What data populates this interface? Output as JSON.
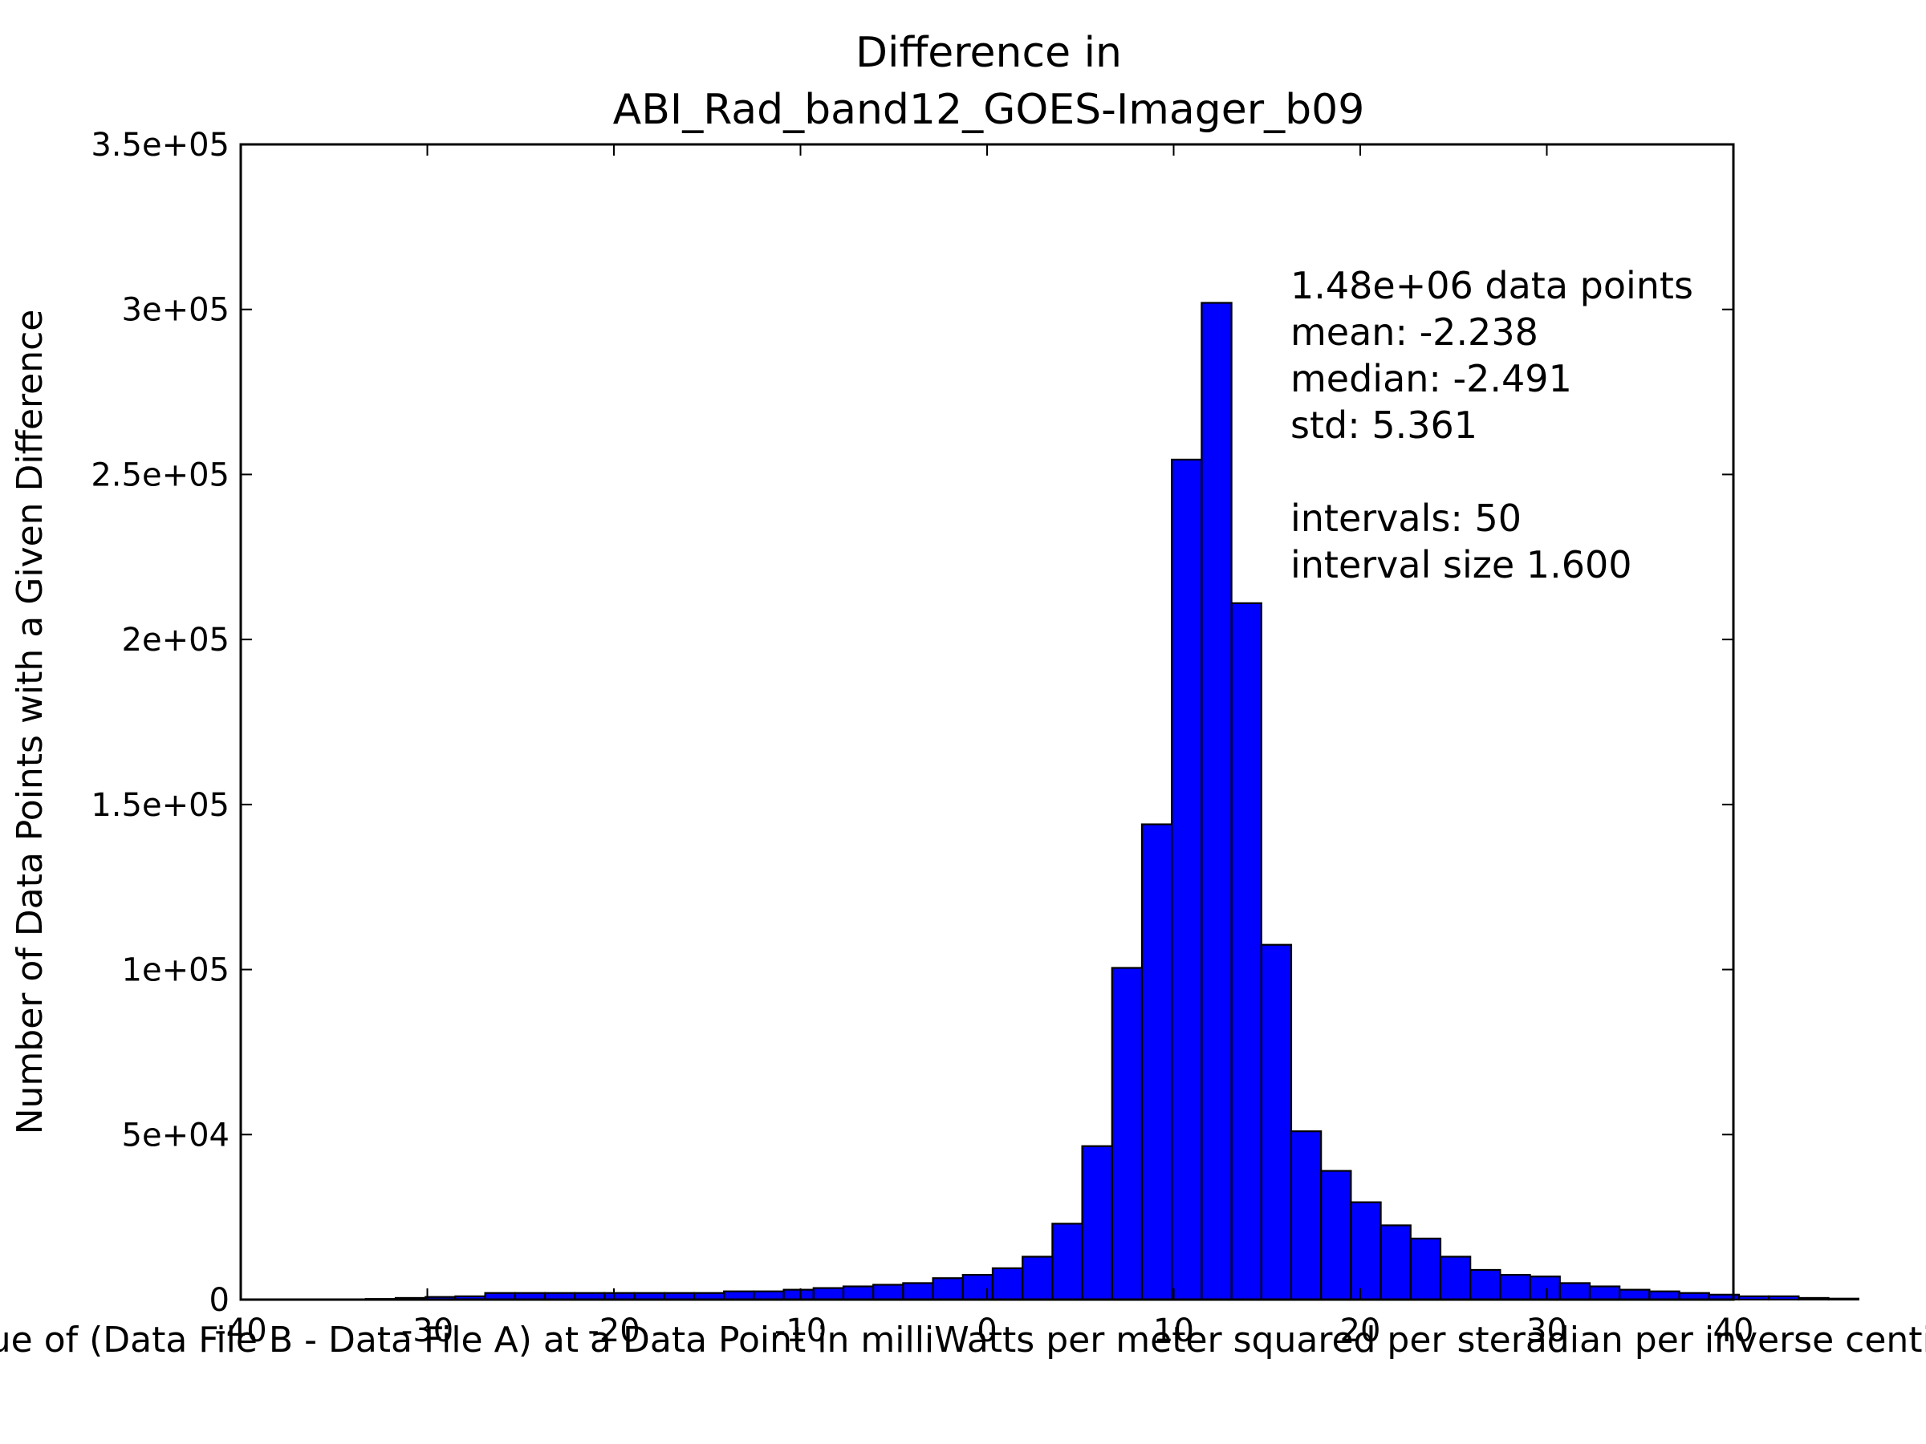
{
  "chart_data": {
    "type": "bar",
    "title_lines": [
      "Difference in",
      "ABI_Rad_band12_GOES-Imager_b09"
    ],
    "xlabel": "Value of (Data File B - Data File A) at a Data Point in milliWatts per meter squared per steradian per inverse centimeter",
    "ylabel": "Number of Data Points with a Given Difference",
    "xlim": [
      -40,
      40
    ],
    "ylim": [
      0,
      350000
    ],
    "x_ticks": [
      -40,
      -30,
      -20,
      -10,
      0,
      10,
      20,
      30,
      40
    ],
    "x_tick_labels": [
      "-40",
      "-30",
      "-20",
      "-10",
      "0",
      "10",
      "20",
      "30",
      "40"
    ],
    "y_ticks": [
      0,
      50000,
      100000,
      150000,
      200000,
      250000,
      300000,
      350000
    ],
    "y_tick_labels": [
      "0",
      "5e+04",
      "1e+05",
      "1.5e+05",
      "2e+05",
      "2.5e+05",
      "3e+05",
      "3.5e+05"
    ],
    "grid": false,
    "bar_color": "#0000ff",
    "edge_color": "#000000",
    "annotation_lines": [
      "1.48e+06 data points",
      "mean: -2.238",
      "median: -2.491",
      "std: 5.361",
      "",
      "intervals: 50",
      "interval size 1.600"
    ],
    "bins": {
      "start": -33.3,
      "width": 1.6,
      "counts": [
        200,
        500,
        800,
        1000,
        2000,
        2000,
        2000,
        2000,
        2000,
        2000,
        2000,
        2000,
        2500,
        2500,
        3000,
        3500,
        4000,
        4500,
        5000,
        6500,
        7500,
        9500,
        13000,
        23000,
        46500,
        100500,
        144000,
        254500,
        302000,
        211000,
        107500,
        51000,
        39000,
        29500,
        22500,
        18500,
        13000,
        9000,
        7500,
        7000,
        5000,
        4000,
        3000,
        2500,
        2000,
        1500,
        1000,
        1000,
        500,
        300
      ]
    }
  }
}
